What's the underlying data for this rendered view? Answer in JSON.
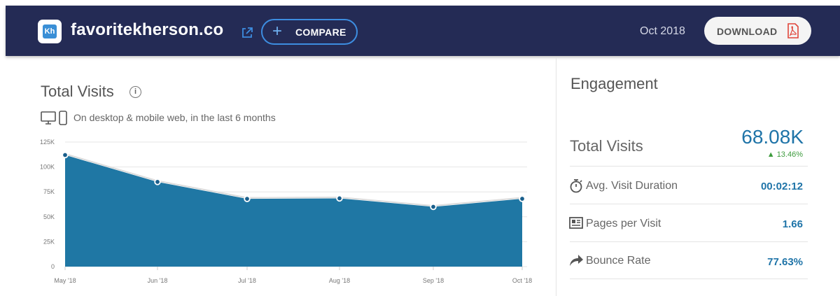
{
  "header": {
    "logo_text": "Kh",
    "site_name": "favoritekherson.co",
    "compare_label": "COMPARE",
    "month": "Oct 2018",
    "download_label": "DOWNLOAD",
    "background_color": "#242b55"
  },
  "visits_panel": {
    "title": "Total Visits",
    "info_symbol": "i",
    "scope": "On desktop & mobile web, in the last 6 months"
  },
  "engagement": {
    "title": "Engagement",
    "total_visits_label": "Total Visits",
    "total_visits_value": "68.08K",
    "total_visits_change": "13.46%",
    "metrics": [
      {
        "icon": "stopwatch-icon",
        "label": "Avg. Visit Duration",
        "value": "00:02:12"
      },
      {
        "icon": "pages-icon",
        "label": "Pages per Visit",
        "value": "1.66"
      },
      {
        "icon": "bounce-arrow-icon",
        "label": "Bounce Rate",
        "value": "77.63%"
      }
    ],
    "accent_color": "#1f74a8",
    "positive_color": "#3d9b3d"
  },
  "chart_data": {
    "type": "area",
    "categories": [
      "May '18",
      "Jun '18",
      "Jul '18",
      "Aug '18",
      "Sep '18",
      "Oct '18"
    ],
    "values": [
      112000,
      85000,
      68000,
      68500,
      60000,
      68080
    ],
    "ytick_labels": [
      "125K",
      "100K",
      "75K",
      "50K",
      "25K",
      "0"
    ],
    "yticks": [
      125000,
      100000,
      75000,
      50000,
      25000,
      0
    ],
    "ylim": [
      0,
      125000
    ],
    "grid": true,
    "fill_color": "#1f77a4"
  }
}
